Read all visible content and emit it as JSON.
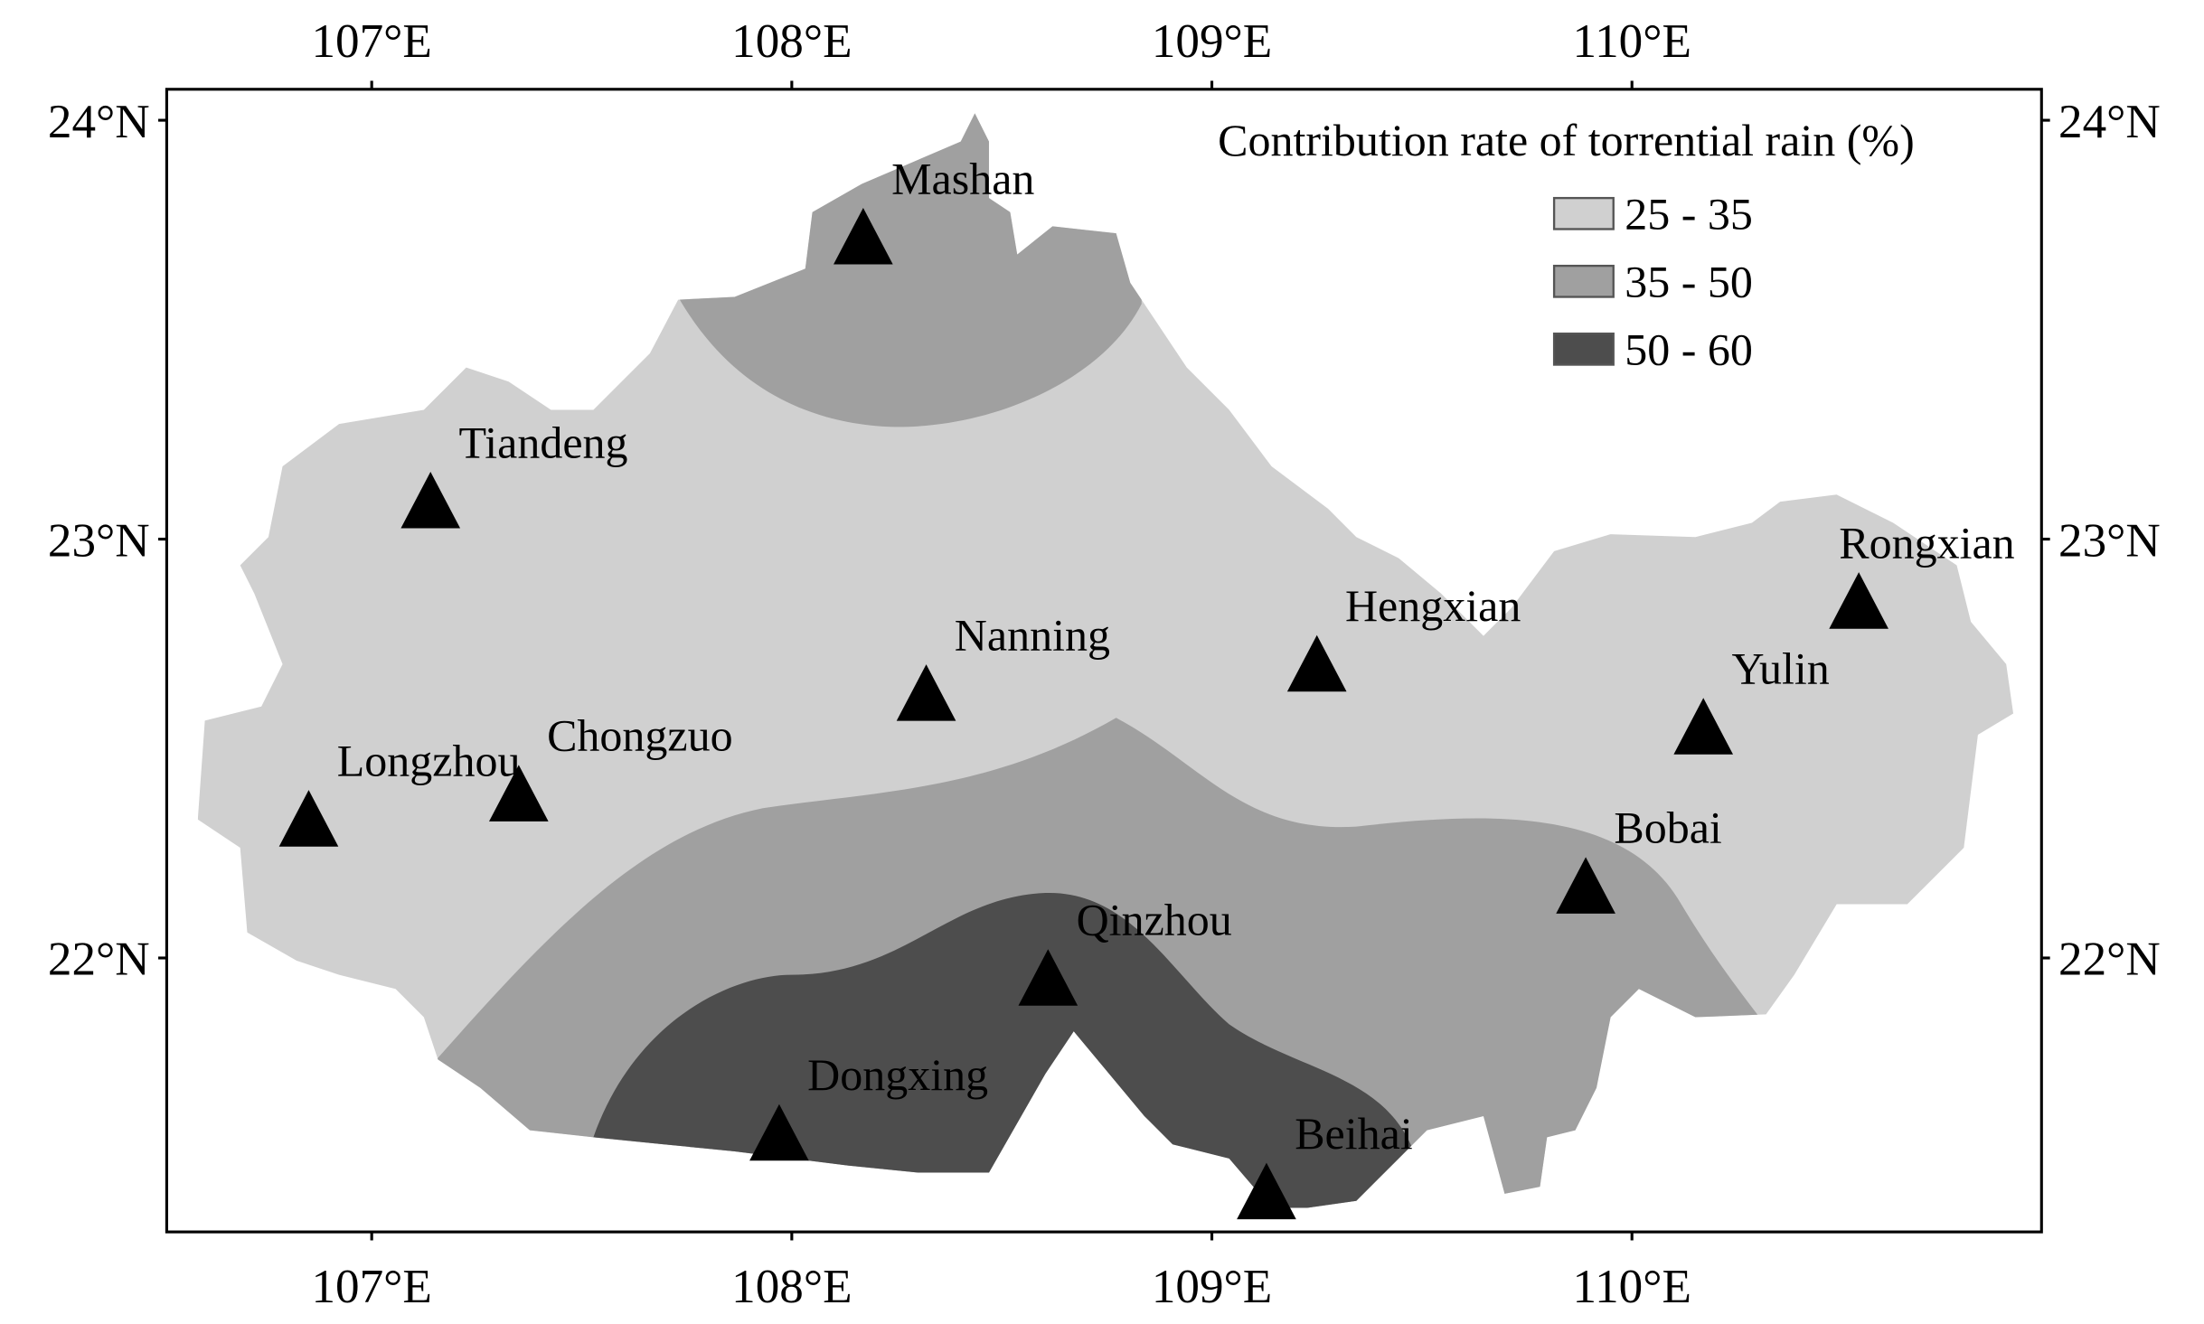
{
  "map": {
    "legend": {
      "title": "Contribution rate of torrential rain (%)",
      "items": [
        {
          "label": "25 - 35",
          "color": "#d0d0d0"
        },
        {
          "label": "35 - 50",
          "color": "#a0a0a0"
        },
        {
          "label": "50 - 60",
          "color": "#4d4d4d"
        }
      ]
    },
    "xlim": [
      106.512,
      110.975
    ],
    "ylim": [
      21.346,
      24.074
    ],
    "xticks": [
      {
        "value": 107,
        "label": "107°E"
      },
      {
        "value": 108,
        "label": "108°E"
      },
      {
        "value": 109,
        "label": "109°E"
      },
      {
        "value": 110,
        "label": "110°E"
      }
    ],
    "yticks": [
      {
        "value": 22,
        "label": "22°N"
      },
      {
        "value": 23,
        "label": "23°N"
      },
      {
        "value": 24,
        "label": "24°N"
      }
    ],
    "stations": [
      {
        "name": "Mashan",
        "lon": 108.17,
        "lat": 23.71
      },
      {
        "name": "Tiandeng",
        "lon": 107.14,
        "lat": 23.08
      },
      {
        "name": "Nanning",
        "lon": 108.32,
        "lat": 22.62
      },
      {
        "name": "Hengxian",
        "lon": 109.25,
        "lat": 22.69
      },
      {
        "name": "Rongxian",
        "lon": 110.54,
        "lat": 22.84
      },
      {
        "name": "Yulin",
        "lon": 110.17,
        "lat": 22.54
      },
      {
        "name": "Bobai",
        "lon": 109.89,
        "lat": 22.16
      },
      {
        "name": "Qinzhou",
        "lon": 108.61,
        "lat": 21.94
      },
      {
        "name": "Chongzuo",
        "lon": 107.35,
        "lat": 22.38
      },
      {
        "name": "Longzhou",
        "lon": 106.85,
        "lat": 22.32
      },
      {
        "name": "Dongxing",
        "lon": 107.97,
        "lat": 21.57
      },
      {
        "name": "Beihai",
        "lon": 109.13,
        "lat": 21.43
      }
    ]
  }
}
